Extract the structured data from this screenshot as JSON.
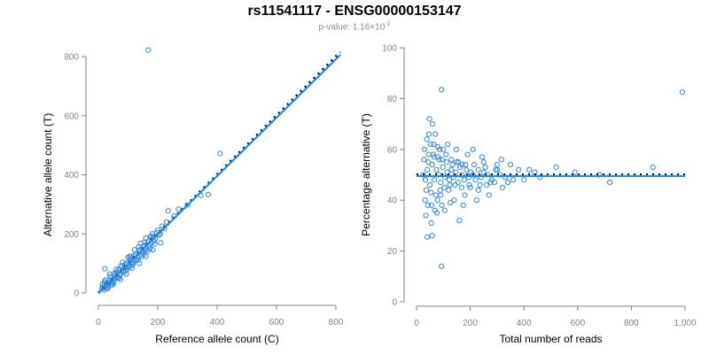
{
  "title": "rs11541117 - ENSG00000153147",
  "subtitle_prefix": "p-value: 1.16×10",
  "subtitle_exp": "-2",
  "colors": {
    "points": "#2e86de",
    "fit": "#1f8bea",
    "reference": "#000000",
    "axis": "#808080"
  },
  "chart_data": [
    {
      "type": "scatter",
      "xlabel": "Reference allele count (C)",
      "ylabel": "Alternative allele count (T)",
      "xlim": [
        0,
        800
      ],
      "ylim": [
        0,
        800
      ],
      "xticks": [
        0,
        200,
        400,
        600,
        800
      ],
      "yticks": [
        0,
        200,
        400,
        600,
        800
      ],
      "xtick_labels": [
        "0",
        "200",
        "400",
        "600",
        "800"
      ],
      "ytick_labels": [
        "0",
        "200",
        "400",
        "600",
        "800"
      ],
      "fit_line": {
        "x": [
          0,
          815
        ],
        "y": [
          0,
          806
        ]
      },
      "reference_line": {
        "x": [
          0,
          815
        ],
        "y": [
          0,
          815
        ]
      },
      "points": [
        [
          168,
          822
        ],
        [
          410,
          472
        ],
        [
          270,
          284
        ],
        [
          345,
          330
        ],
        [
          370,
          333
        ],
        [
          300,
          298
        ],
        [
          235,
          278
        ],
        [
          255,
          260
        ],
        [
          22,
          82
        ],
        [
          30,
          28
        ],
        [
          40,
          56
        ],
        [
          55,
          48
        ],
        [
          62,
          70
        ],
        [
          75,
          66
        ],
        [
          88,
          84
        ],
        [
          95,
          100
        ],
        [
          102,
          92
        ],
        [
          110,
          118
        ],
        [
          118,
          104
        ],
        [
          125,
          130
        ],
        [
          132,
          120
        ],
        [
          140,
          146
        ],
        [
          148,
          138
        ],
        [
          155,
          160
        ],
        [
          162,
          150
        ],
        [
          170,
          176
        ],
        [
          178,
          168
        ],
        [
          185,
          190
        ],
        [
          192,
          184
        ],
        [
          200,
          212
        ],
        [
          208,
          200
        ],
        [
          215,
          226
        ],
        [
          222,
          218
        ],
        [
          230,
          240
        ],
        [
          12,
          14
        ],
        [
          15,
          20
        ],
        [
          18,
          10
        ],
        [
          20,
          24
        ],
        [
          25,
          18
        ],
        [
          28,
          34
        ],
        [
          33,
          26
        ],
        [
          36,
          40
        ],
        [
          42,
          36
        ],
        [
          46,
          52
        ],
        [
          50,
          42
        ],
        [
          58,
          62
        ],
        [
          64,
          56
        ],
        [
          68,
          78
        ],
        [
          72,
          60
        ],
        [
          80,
          88
        ],
        [
          84,
          74
        ],
        [
          90,
          96
        ],
        [
          98,
          86
        ],
        [
          105,
          112
        ],
        [
          112,
          100
        ],
        [
          120,
          126
        ],
        [
          128,
          114
        ],
        [
          135,
          142
        ],
        [
          144,
          130
        ],
        [
          150,
          156
        ],
        [
          158,
          144
        ],
        [
          165,
          172
        ],
        [
          172,
          160
        ],
        [
          180,
          186
        ],
        [
          188,
          176
        ],
        [
          196,
          204
        ],
        [
          205,
          196
        ],
        [
          14,
          30
        ],
        [
          24,
          44
        ],
        [
          34,
          20
        ],
        [
          44,
          30
        ],
        [
          54,
          66
        ],
        [
          66,
          50
        ],
        [
          76,
          92
        ],
        [
          86,
          70
        ],
        [
          96,
          80
        ],
        [
          106,
          124
        ],
        [
          116,
          96
        ],
        [
          126,
          110
        ],
        [
          136,
          156
        ],
        [
          146,
          124
        ],
        [
          156,
          172
        ],
        [
          166,
          142
        ],
        [
          176,
          192
        ],
        [
          20,
          38
        ],
        [
          38,
          64
        ],
        [
          48,
          28
        ],
        [
          60,
          80
        ],
        [
          70,
          52
        ],
        [
          82,
          104
        ],
        [
          92,
          76
        ],
        [
          100,
          120
        ],
        [
          108,
          90
        ],
        [
          122,
          146
        ],
        [
          134,
          112
        ],
        [
          142,
          168
        ],
        [
          152,
          130
        ],
        [
          160,
          186
        ],
        [
          174,
          150
        ],
        [
          182,
          200
        ],
        [
          190,
          166
        ],
        [
          30,
          14
        ],
        [
          52,
          34
        ],
        [
          74,
          46
        ],
        [
          94,
          64
        ],
        [
          114,
          84
        ],
        [
          138,
          100
        ],
        [
          160,
          124
        ],
        [
          184,
          146
        ],
        [
          210,
          170
        ]
      ]
    },
    {
      "type": "scatter",
      "xlabel": "Total number of reads",
      "ylabel": "Percentage alternative (T)",
      "xlim": [
        0,
        1000
      ],
      "ylim": [
        0,
        100
      ],
      "xticks": [
        0,
        200,
        400,
        600,
        800,
        1000
      ],
      "yticks": [
        0,
        20,
        40,
        60,
        80,
        100
      ],
      "xtick_labels": [
        "0",
        "200",
        "400",
        "600",
        "800",
        "1,000"
      ],
      "ytick_labels": [
        "0",
        "20",
        "40",
        "60",
        "80",
        "100"
      ],
      "fit_line": {
        "x": [
          0,
          1000
        ],
        "y": [
          49.5,
          49.5
        ]
      },
      "reference_line": {
        "x": [
          0,
          1000
        ],
        "y": [
          50,
          50
        ]
      },
      "points": [
        [
          990,
          82.5
        ],
        [
          93,
          83.5
        ],
        [
          93,
          14
        ],
        [
          40,
          25.5
        ],
        [
          58,
          26
        ],
        [
          48,
          72
        ],
        [
          60,
          70
        ],
        [
          70,
          66
        ],
        [
          38,
          64
        ],
        [
          52,
          62
        ],
        [
          80,
          61
        ],
        [
          100,
          60
        ],
        [
          30,
          60
        ],
        [
          45,
          58
        ],
        [
          65,
          57
        ],
        [
          85,
          56
        ],
        [
          110,
          58
        ],
        [
          130,
          56
        ],
        [
          150,
          55
        ],
        [
          170,
          54
        ],
        [
          210,
          60
        ],
        [
          250,
          55
        ],
        [
          300,
          54
        ],
        [
          350,
          54
        ],
        [
          420,
          52
        ],
        [
          520,
          53
        ],
        [
          590,
          51
        ],
        [
          680,
          50
        ],
        [
          720,
          47
        ],
        [
          880,
          53
        ],
        [
          35,
          34
        ],
        [
          42,
          38
        ],
        [
          55,
          31
        ],
        [
          68,
          36
        ],
        [
          78,
          40
        ],
        [
          90,
          42
        ],
        [
          105,
          36
        ],
        [
          120,
          44
        ],
        [
          140,
          40
        ],
        [
          160,
          32
        ],
        [
          180,
          42
        ],
        [
          200,
          45
        ],
        [
          230,
          44
        ],
        [
          260,
          46
        ],
        [
          290,
          47
        ],
        [
          320,
          45
        ],
        [
          360,
          48
        ],
        [
          400,
          48
        ],
        [
          460,
          49
        ],
        [
          25,
          50
        ],
        [
          33,
          48
        ],
        [
          40,
          52
        ],
        [
          50,
          46
        ],
        [
          58,
          54
        ],
        [
          66,
          48
        ],
        [
          74,
          52
        ],
        [
          82,
          50
        ],
        [
          90,
          47
        ],
        [
          98,
          53
        ],
        [
          106,
          49
        ],
        [
          114,
          51
        ],
        [
          122,
          48
        ],
        [
          130,
          52
        ],
        [
          138,
          49
        ],
        [
          146,
          51
        ],
        [
          154,
          47
        ],
        [
          162,
          53
        ],
        [
          170,
          50
        ],
        [
          178,
          48
        ],
        [
          186,
          52
        ],
        [
          194,
          49
        ],
        [
          202,
          51
        ],
        [
          210,
          50
        ],
        [
          220,
          48
        ],
        [
          230,
          52
        ],
        [
          240,
          49
        ],
        [
          250,
          51
        ],
        [
          265,
          50
        ],
        [
          280,
          48
        ],
        [
          295,
          52
        ],
        [
          310,
          50
        ],
        [
          330,
          49
        ],
        [
          28,
          56
        ],
        [
          36,
          44
        ],
        [
          44,
          55
        ],
        [
          54,
          43
        ],
        [
          62,
          58
        ],
        [
          72,
          42
        ],
        [
          80,
          57
        ],
        [
          88,
          44
        ],
        [
          96,
          56
        ],
        [
          104,
          45
        ],
        [
          112,
          55
        ],
        [
          124,
          46
        ],
        [
          134,
          54
        ],
        [
          144,
          46
        ],
        [
          156,
          55
        ],
        [
          168,
          45
        ],
        [
          182,
          54
        ],
        [
          196,
          46
        ],
        [
          214,
          54
        ],
        [
          236,
          46
        ],
        [
          256,
          53
        ],
        [
          276,
          47
        ],
        [
          300,
          52
        ],
        [
          340,
          47
        ],
        [
          380,
          52
        ],
        [
          32,
          40
        ],
        [
          46,
          66
        ],
        [
          56,
          38
        ],
        [
          64,
          62
        ],
        [
          76,
          35
        ],
        [
          86,
          60
        ],
        [
          94,
          38
        ],
        [
          116,
          62
        ],
        [
          126,
          39
        ],
        [
          148,
          60
        ],
        [
          174,
          38
        ],
        [
          190,
          58
        ],
        [
          224,
          40
        ],
        [
          244,
          57
        ],
        [
          270,
          42
        ],
        [
          316,
          56
        ],
        [
          440,
          51
        ]
      ]
    }
  ]
}
